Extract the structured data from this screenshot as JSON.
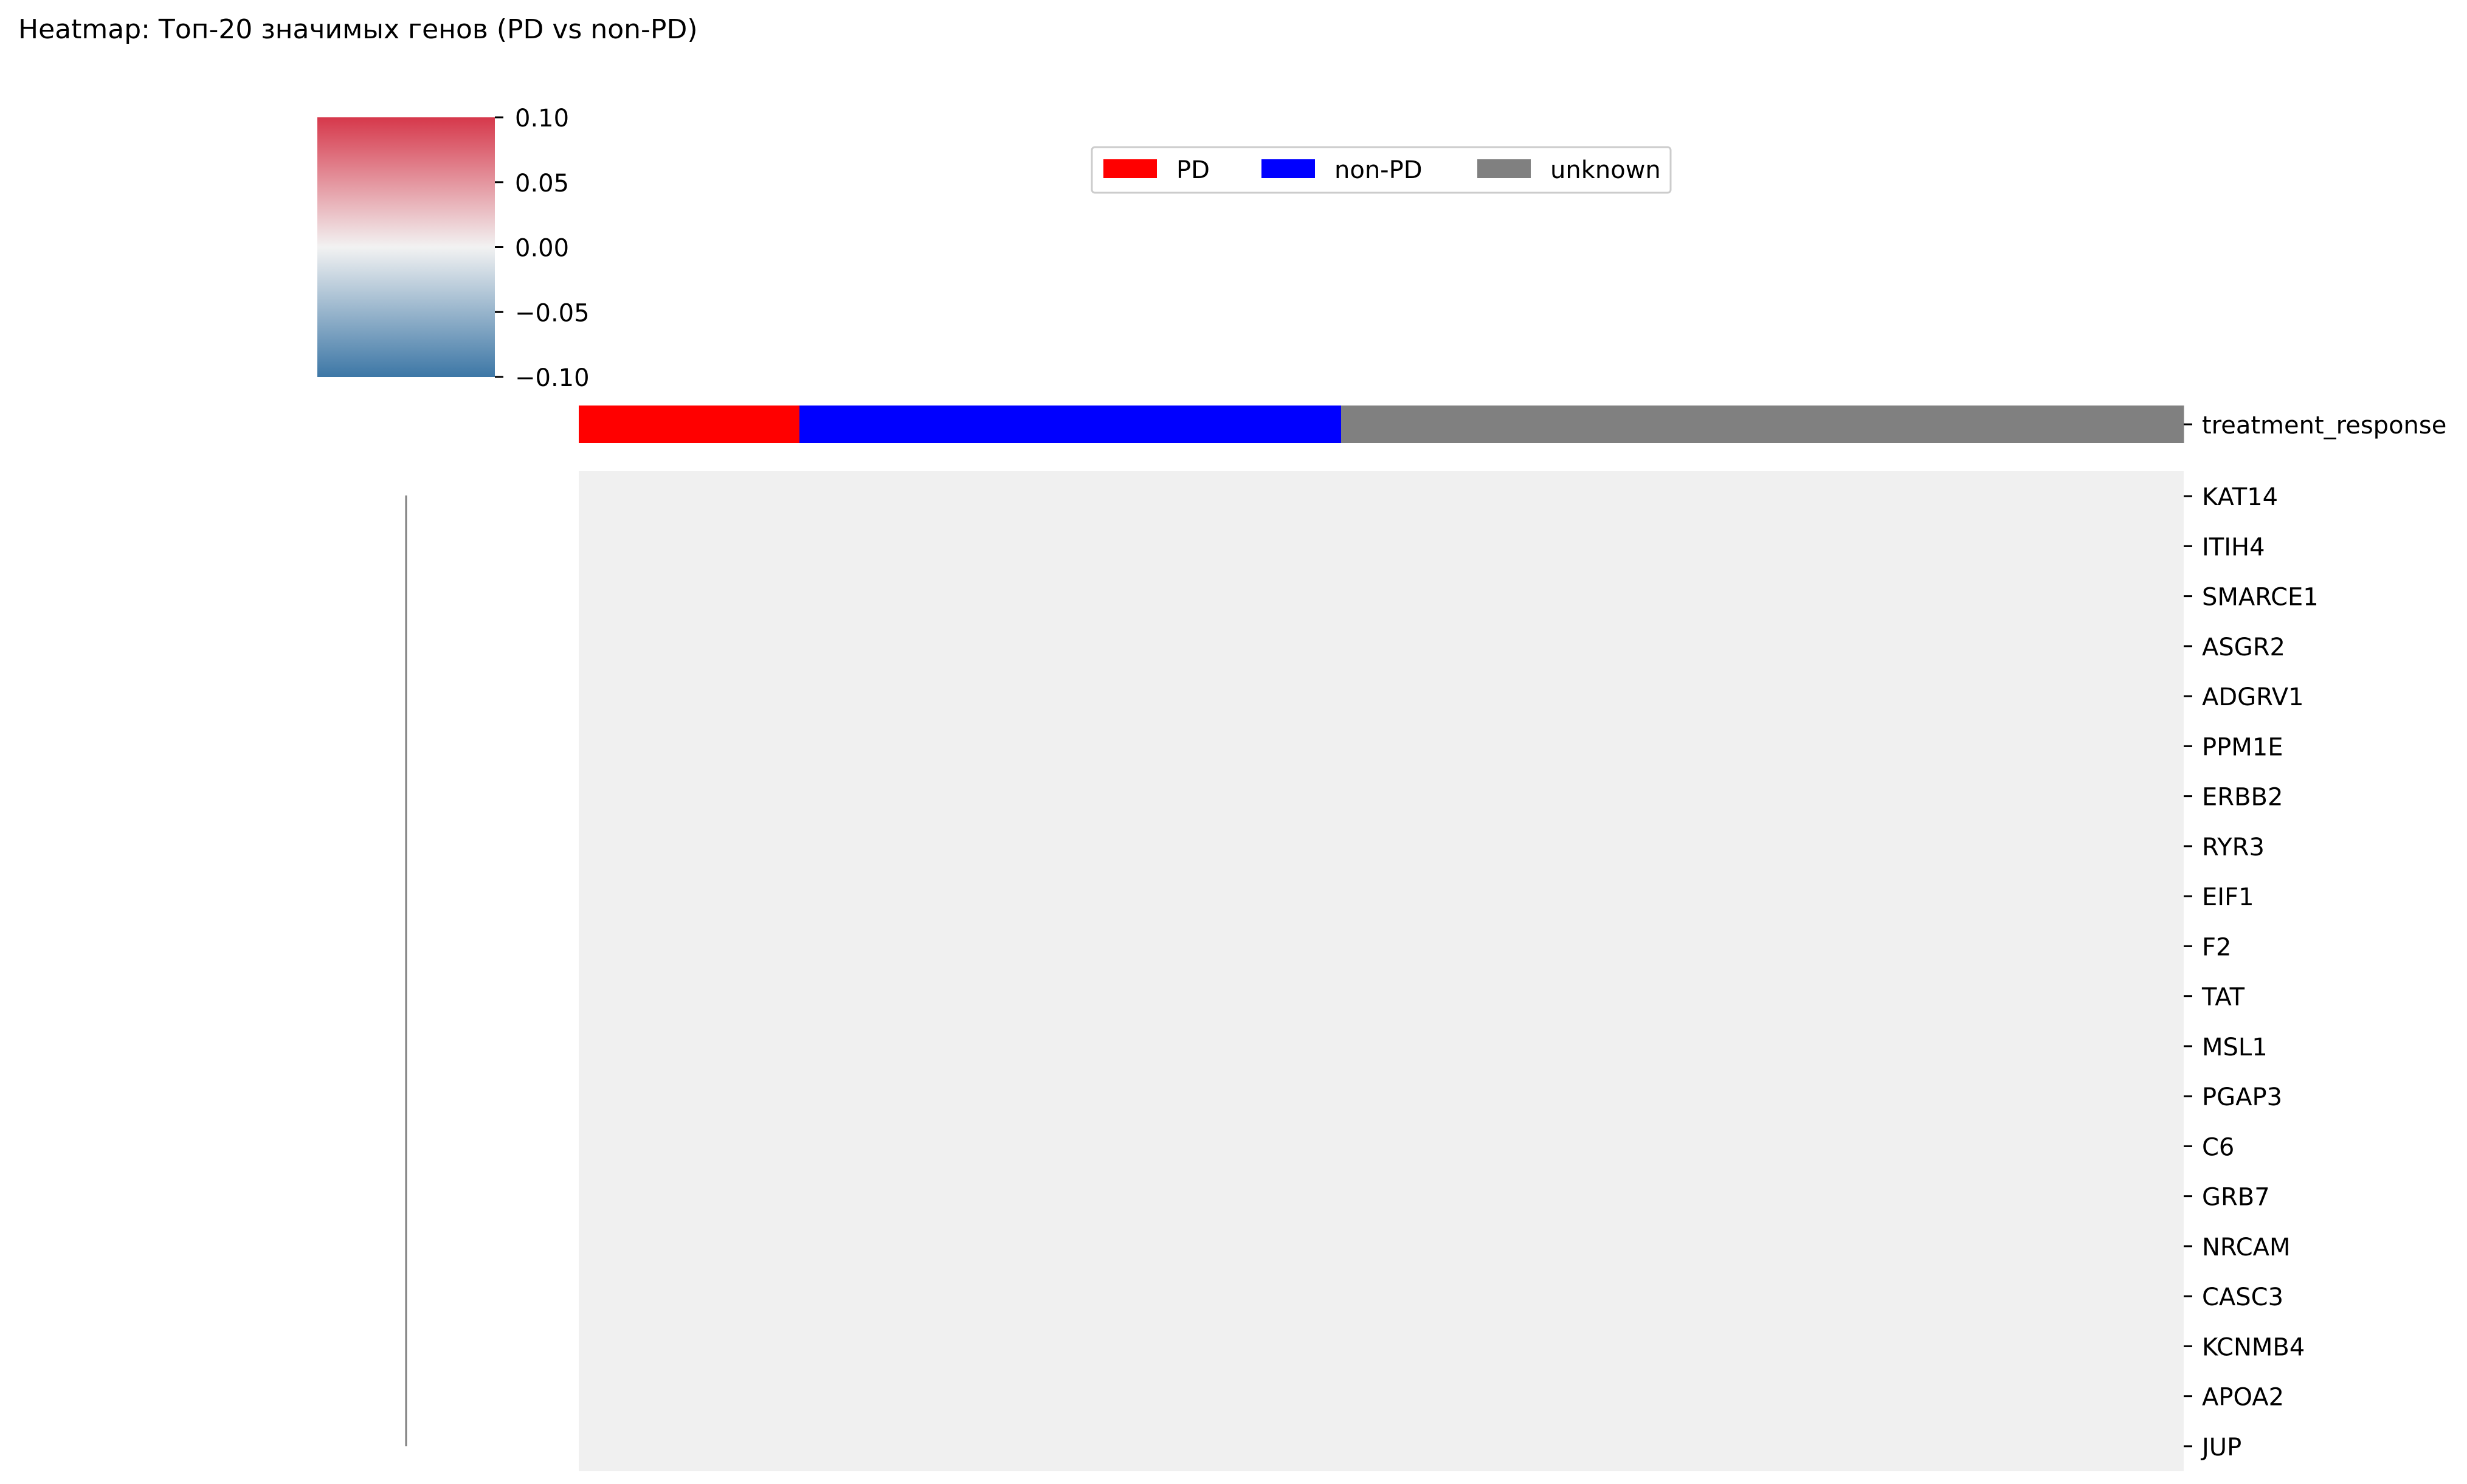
{
  "chart_data": {
    "type": "heatmap",
    "title": "Heatmap: Топ-20 значимых генов (PD vs non-PD)",
    "rows": [
      "KAT14",
      "ITIH4",
      "SMARCE1",
      "ASGR2",
      "ADGRV1",
      "PPM1E",
      "ERBB2",
      "RYR3",
      "EIF1",
      "F2",
      "TAT",
      "MSL1",
      "PGAP3",
      "C6",
      "GRB7",
      "NRCAM",
      "CASC3",
      "KCNMB4",
      "APOA2",
      "JUP"
    ],
    "cell_value": 0.0,
    "cell_color": "#f0f0f0",
    "colorbar": {
      "ticks": [
        "0.10",
        "0.05",
        "0.00",
        "−0.05",
        "−0.10"
      ],
      "range": [
        -0.1,
        0.1
      ],
      "colors": {
        "low": "#3d77a6",
        "mid": "#f2f2f2",
        "high": "#d6384b"
      }
    },
    "annotation_row": {
      "label": "treatment_response",
      "segments": [
        {
          "group": "PD",
          "fraction": 0.1375,
          "color": "#ff0000"
        },
        {
          "group": "non-PD",
          "fraction": 0.3375,
          "color": "#0000ff"
        },
        {
          "group": "unknown",
          "fraction": 0.525,
          "color": "#808080"
        }
      ]
    },
    "legend": {
      "placement": "top-center",
      "entries": [
        {
          "label": "PD",
          "color": "#ff0000"
        },
        {
          "label": "non-PD",
          "color": "#0000ff"
        },
        {
          "label": "unknown",
          "color": "#808080"
        }
      ]
    },
    "dendrogram": {
      "side": "left",
      "color": "#808080"
    }
  }
}
